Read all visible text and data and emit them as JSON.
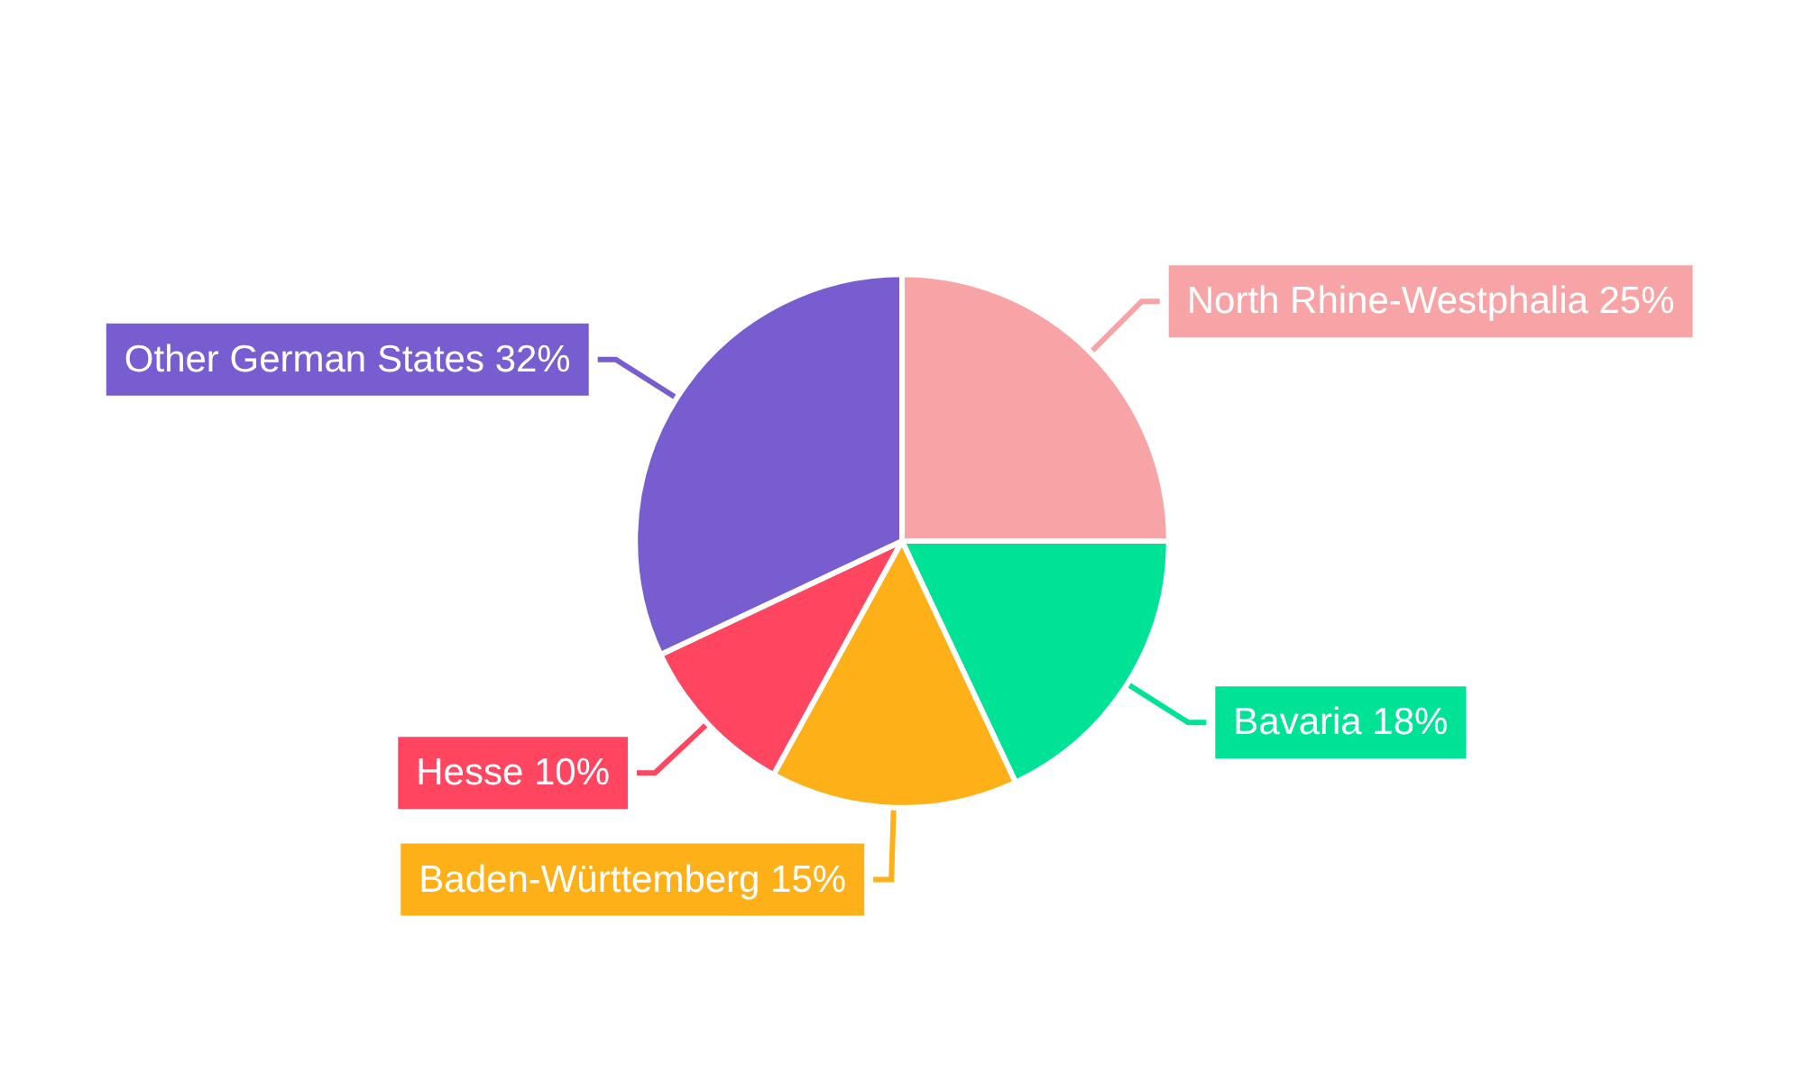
{
  "chart_data": {
    "type": "pie",
    "categories": [
      "North Rhine-Westphalia",
      "Bavaria",
      "Baden-Württemberg",
      "Hesse",
      "Other German States"
    ],
    "values": [
      25,
      18,
      15,
      10,
      32
    ],
    "value_labels": [
      "25%",
      "18%",
      "15%",
      "10%",
      "32%"
    ],
    "colors": [
      "#f8a4a6",
      "#00e396",
      "#feb019",
      "#ff4560",
      "#775dd0"
    ],
    "legend": false
  }
}
